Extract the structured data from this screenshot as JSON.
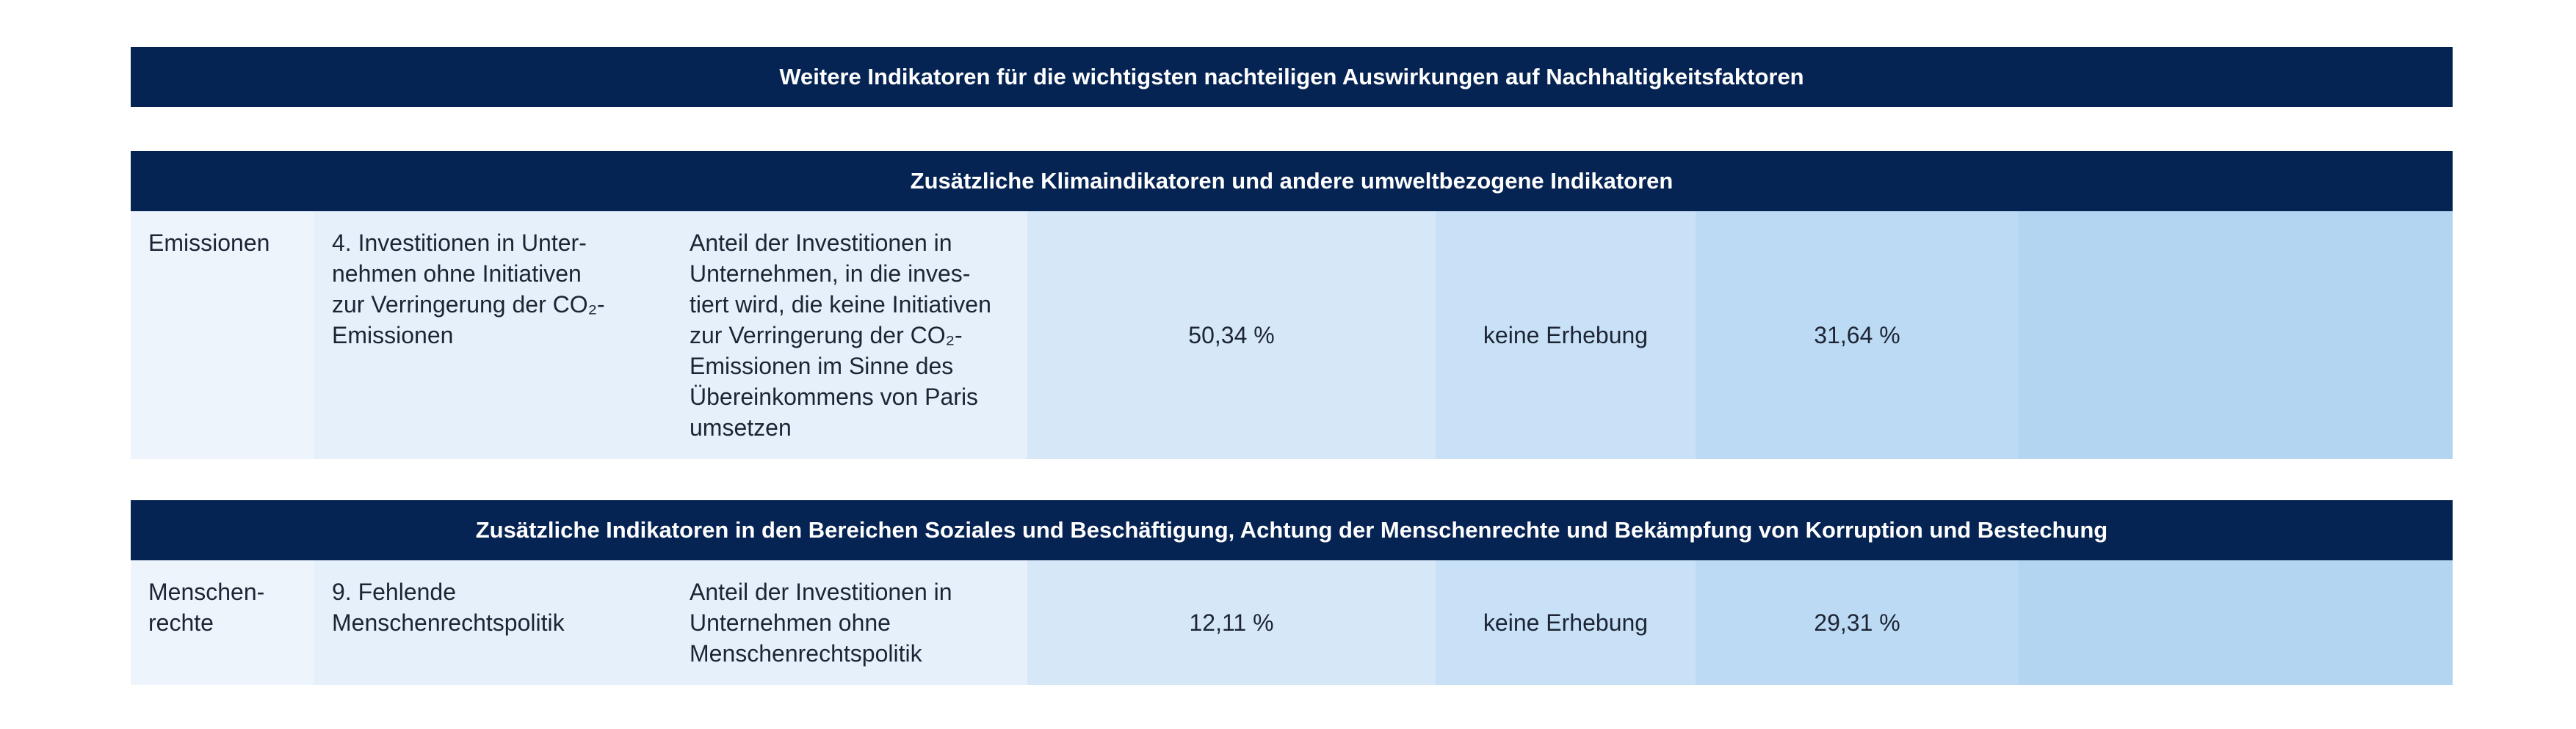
{
  "header": {
    "title": "Weitere Indikatoren für die wichtigsten nachteiligen Auswirkungen auf Nachhaltigkeitsfaktoren"
  },
  "sections": [
    {
      "title": "Zusätzliche Klimaindikatoren und andere umweltbezogene Indikatoren",
      "row": {
        "category": "Emissionen",
        "indicator": "4. Investitionen in Unter-\nnehmen ohne Initiativen\nzur Verringerung der CO₂-\nEmissionen",
        "metric": "Anteil der Investitionen in\nUnternehmen, in die inves-\ntiert wird, die keine Initiativen\nzur Verringerung der CO₂-\nEmissionen im Sinne des\nÜbereinkommens von Paris\numsetzen",
        "value_1": "50,34 %",
        "value_2": "keine Erhebung",
        "value_3": "31,64 %",
        "value_4": ""
      }
    },
    {
      "title": "Zusätzliche Indikatoren in den Bereichen Soziales und Beschäftigung, Achtung der Menschenrechte und Bekämpfung von Korruption und Bestechung",
      "row": {
        "category": "Menschen-\nrechte",
        "indicator": "9. Fehlende\nMenschenrechtspolitik",
        "metric": "Anteil der Investitionen in\nUnternehmen ohne\nMenschenrechtspolitik",
        "value_1": "12,11 %",
        "value_2": "keine Erhebung",
        "value_3": "29,31 %",
        "value_4": ""
      }
    }
  ],
  "colors": {
    "header_band": "#062453",
    "column_shades": [
      "#edf4fc",
      "#e6f0fb",
      "#e6f0fb",
      "#d6e7f8",
      "#c9e1f6",
      "#bcdaf4",
      "#b3d5f2"
    ],
    "row_separator": "#8fa3bf"
  }
}
